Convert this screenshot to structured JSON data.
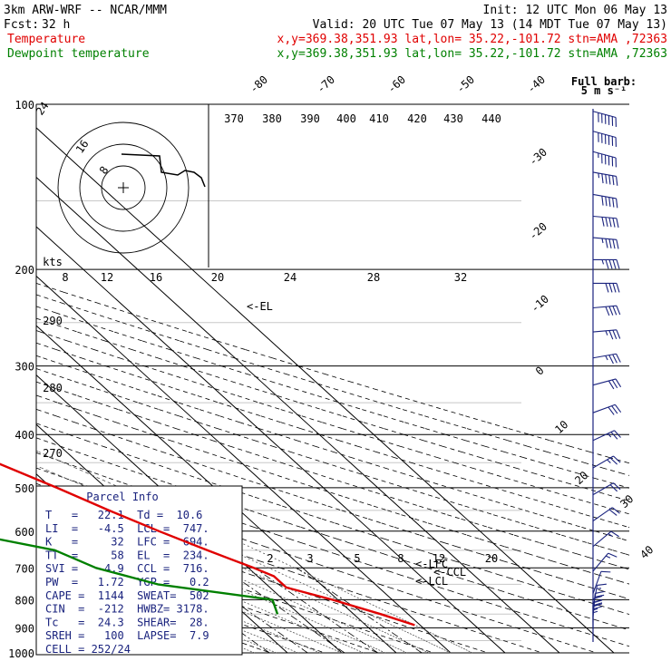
{
  "header": {
    "model": "3km ARW-WRF -- NCAR/MMM",
    "init": "Init: 12 UTC Mon 06 May 13",
    "fcst_label": "Fcst:",
    "fcst_value": "32 h",
    "valid": "Valid: 20 UTC Tue 07 May 13 (14 MDT Tue 07 May 13)",
    "temp_legend": "Temperature",
    "dew_legend": "Dewpoint temperature",
    "location": "x,y=369.38,351.93   lat,lon= 35.22,-101.72  stn=AMA ,72363"
  },
  "colors": {
    "temperature": "#e00000",
    "dewpoint": "#008000",
    "barbs": "#1a237e",
    "info": "#1a237e"
  },
  "barb_legend": {
    "line1": "Full barb:",
    "line2": "5 m s⁻¹"
  },
  "chart_data": {
    "type": "line",
    "yscale": "log-pressure",
    "pressure_labels": [
      "100",
      "200",
      "300",
      "400",
      "500",
      "600",
      "700",
      "800",
      "900",
      "1000"
    ],
    "isotherm_labels": [
      "-80",
      "-70",
      "-60",
      "-50",
      "-40",
      "-30",
      "-20",
      "-10",
      "0",
      "10",
      "20",
      "30",
      "40"
    ],
    "theta_labels": [
      "370",
      "380",
      "390",
      "400",
      "410",
      "420",
      "430",
      "440"
    ],
    "mixing_ratio_labels": [
      "2",
      "3",
      "5",
      "8",
      "12",
      "20"
    ],
    "wind_speed_labels": [
      "8",
      "12",
      "16",
      "20",
      "24",
      "28",
      "32"
    ],
    "wind_speed_unit": "kts",
    "hodograph_rings": [
      "8",
      "16",
      "24"
    ],
    "adiabat_labels": [
      "290",
      "280",
      "270"
    ],
    "level_markers": [
      "EL",
      "LFC",
      "CCL",
      "LCL"
    ],
    "series": [
      {
        "name": "Temperature",
        "points": [
          [
            100,
            -60
          ],
          [
            115,
            -62
          ],
          [
            130,
            -58
          ],
          [
            145,
            -55
          ],
          [
            160,
            -53
          ],
          [
            175,
            -53
          ],
          [
            190,
            -54
          ],
          [
            200,
            -55
          ],
          [
            225,
            -53
          ],
          [
            250,
            -48
          ],
          [
            300,
            -38
          ],
          [
            350,
            -29
          ],
          [
            400,
            -22
          ],
          [
            450,
            -15
          ],
          [
            500,
            -9
          ],
          [
            550,
            -4
          ],
          [
            600,
            1
          ],
          [
            650,
            6
          ],
          [
            700,
            11
          ],
          [
            725,
            13
          ],
          [
            760,
            13
          ],
          [
            800,
            19
          ],
          [
            850,
            25
          ],
          [
            890,
            29
          ]
        ]
      },
      {
        "name": "Dewpoint temperature",
        "points": [
          [
            100,
            -85
          ],
          [
            115,
            -89
          ],
          [
            130,
            -90
          ],
          [
            150,
            -89
          ],
          [
            165,
            -91
          ],
          [
            180,
            -93
          ],
          [
            200,
            -92
          ],
          [
            225,
            -93
          ],
          [
            250,
            -96
          ],
          [
            275,
            -96
          ],
          [
            300,
            -90
          ],
          [
            350,
            -80
          ],
          [
            400,
            -70
          ],
          [
            450,
            -63
          ],
          [
            500,
            -56
          ],
          [
            550,
            -46
          ],
          [
            600,
            -36
          ],
          [
            650,
            -22
          ],
          [
            700,
            -18
          ],
          [
            750,
            -10
          ],
          [
            800,
            8
          ],
          [
            850,
            6
          ]
        ]
      }
    ]
  },
  "parcel_info": {
    "title": "Parcel Info",
    "rows": [
      "T   =   22.1  Td =  10.6",
      "LI  =   -4.5  LCL =  747.",
      "K   =     32  LFC =  694.",
      "TT  =     58  EL  =  234.",
      "SVI =   -4.9  CCL =  716.",
      "PW  =   1.72  YGP =   0.2",
      "CAPE =  1144  SWEAT=  502",
      "CIN  =  -212  HWBZ= 3178.",
      "Tc   =  24.3  SHEAR=  28.",
      "SREH =   100  LAPSE=  7.9",
      "CELL = 252/24"
    ]
  },
  "wind_barbs": [
    {
      "p": 103,
      "dir": 285,
      "spd": 60
    },
    {
      "p": 112,
      "dir": 285,
      "spd": 60
    },
    {
      "p": 122,
      "dir": 285,
      "spd": 55
    },
    {
      "p": 133,
      "dir": 280,
      "spd": 55
    },
    {
      "p": 146,
      "dir": 280,
      "spd": 50
    },
    {
      "p": 160,
      "dir": 275,
      "spd": 50
    },
    {
      "p": 175,
      "dir": 275,
      "spd": 45
    },
    {
      "p": 192,
      "dir": 270,
      "spd": 45
    },
    {
      "p": 212,
      "dir": 270,
      "spd": 40
    },
    {
      "p": 235,
      "dir": 265,
      "spd": 40
    },
    {
      "p": 260,
      "dir": 265,
      "spd": 35
    },
    {
      "p": 290,
      "dir": 260,
      "spd": 35
    },
    {
      "p": 325,
      "dir": 255,
      "spd": 30
    },
    {
      "p": 365,
      "dir": 250,
      "spd": 30
    },
    {
      "p": 410,
      "dir": 245,
      "spd": 25
    },
    {
      "p": 460,
      "dir": 240,
      "spd": 25
    },
    {
      "p": 515,
      "dir": 240,
      "spd": 20
    },
    {
      "p": 575,
      "dir": 235,
      "spd": 20
    },
    {
      "p": 640,
      "dir": 230,
      "spd": 15
    },
    {
      "p": 710,
      "dir": 220,
      "spd": 15
    },
    {
      "p": 780,
      "dir": 200,
      "spd": 10
    },
    {
      "p": 830,
      "dir": 190,
      "spd": 15
    },
    {
      "p": 860,
      "dir": 185,
      "spd": 20
    },
    {
      "p": 880,
      "dir": 180,
      "spd": 25
    },
    {
      "p": 895,
      "dir": 180,
      "spd": 25
    },
    {
      "p": 905,
      "dir": 180,
      "spd": 25
    }
  ]
}
